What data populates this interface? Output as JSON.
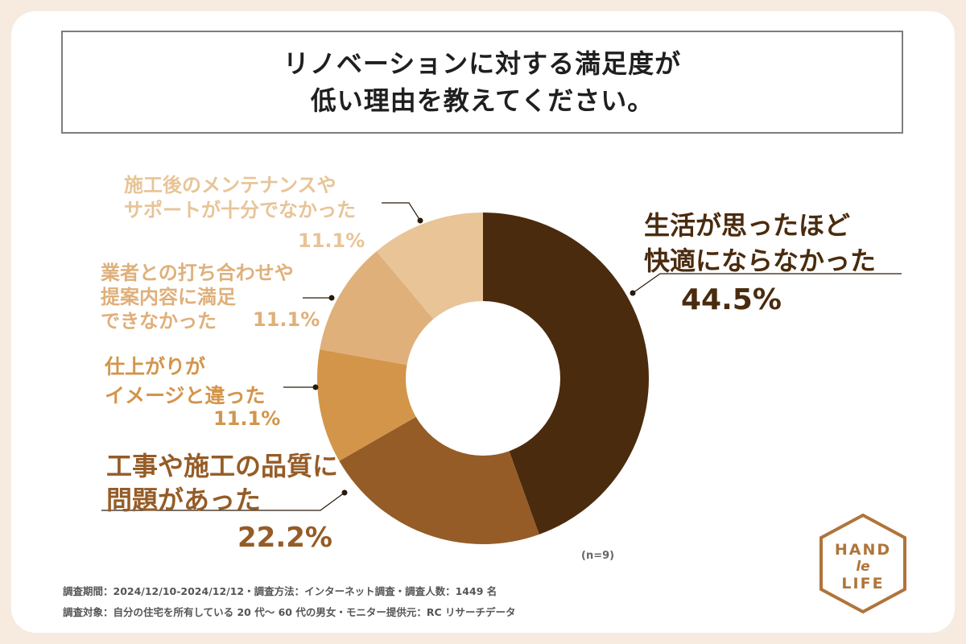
{
  "title": {
    "line1": "リノベーションに対する満足度が",
    "line2": "低い理由を教えてください。"
  },
  "chart_data": {
    "type": "pie",
    "title": "リノベーションに対する満足度が低い理由を教えてください。",
    "slices": [
      {
        "name": "生活が思ったほど快適にならなかった",
        "value": 44.5,
        "label": "44.5%",
        "color": "#4a2b0e"
      },
      {
        "name": "工事や施工の品質に問題があった",
        "value": 22.2,
        "label": "22.2%",
        "color": "#955c27"
      },
      {
        "name": "仕上がりがイメージと違った",
        "value": 11.1,
        "label": "11.1%",
        "color": "#d3954a"
      },
      {
        "name": "業者との打ち合わせや提案内容に満足できなかった",
        "value": 11.1,
        "label": "11.1%",
        "color": "#dfb07a"
      },
      {
        "name": "施工後のメンテナンスやサポートが十分でなかった",
        "value": 11.1,
        "label": "11.1%",
        "color": "#e8c497"
      }
    ],
    "n_note": "(n=9)"
  },
  "labels": {
    "s1": {
      "line1": "生活が思ったほど",
      "line2": "快適にならなかった",
      "pct": "44.5%"
    },
    "s2": {
      "line1": "工事や施工の品質に",
      "line2": "問題があった",
      "pct": "22.2%"
    },
    "s3": {
      "line1": "仕上がりが",
      "line2": "イメージと違った",
      "pct": "11.1%"
    },
    "s4": {
      "line1": "業者との打ち合わせや",
      "line2": "提案内容に満足",
      "line3": "できなかった",
      "pct": "11.1%"
    },
    "s5": {
      "line1": "施工後のメンテナンスや",
      "line2": "サポートが十分でなかった",
      "pct": "11.1%"
    }
  },
  "footer": {
    "line1": "調査期間：2024/12/10-2024/12/12・調査方法：インターネット調査・調査人数：1449 名",
    "line2": "調査対象：自分の住宅を所有している 20 代〜 60 代の男女・モニター提供元：RC リサーチデータ"
  },
  "logo": {
    "line1": "HAND",
    "line2": "le",
    "line3": "LIFE",
    "color": "#b0743a"
  }
}
